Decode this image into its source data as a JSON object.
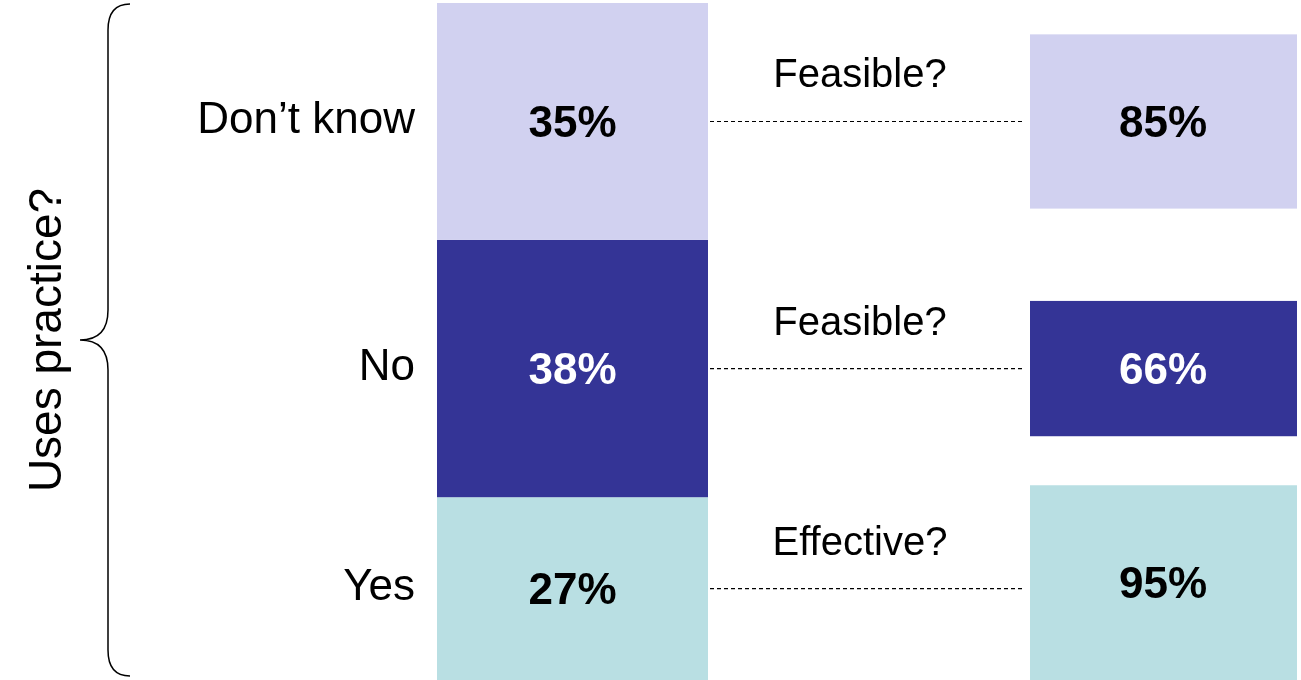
{
  "chart_data": [
    {
      "type": "bar",
      "stacked": true,
      "categories": [
        null
      ],
      "ylabel": "Uses practice?",
      "ylim": [
        0,
        100
      ],
      "series": [
        {
          "name": "Yes",
          "color": "#b9dfe3",
          "values": [
            27
          ],
          "value_labels": [
            "27%"
          ]
        },
        {
          "name": "No",
          "color": "#343496",
          "values": [
            38
          ],
          "value_labels": [
            "38%"
          ]
        },
        {
          "name": "Don’t know",
          "color": "#d1d1f0",
          "values": [
            35
          ],
          "value_labels": [
            "35%"
          ]
        }
      ]
    },
    {
      "type": "other",
      "categories": [
        "Feasible?",
        "Feasible?",
        "Effective?"
      ],
      "values": [
        85,
        66,
        95
      ],
      "value_labels": [
        "85%",
        "66%",
        "95%"
      ],
      "colors": [
        "#d1d1f0",
        "#343496",
        "#b9dfe3"
      ]
    }
  ]
}
